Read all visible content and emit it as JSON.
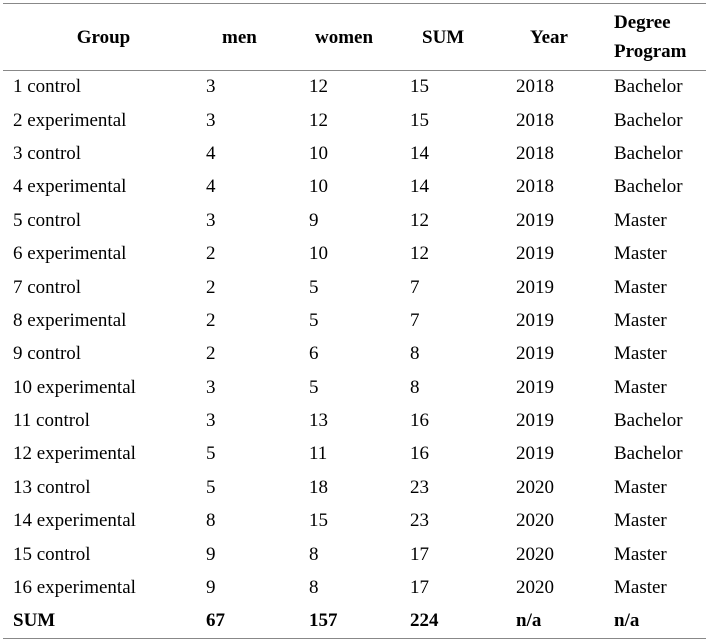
{
  "headers": {
    "group": "Group",
    "men": "men",
    "women": "women",
    "sum": "SUM",
    "year": "Year",
    "program_line1": "Degree",
    "program_line2": "Program"
  },
  "rows": [
    [
      "1 control",
      "3",
      "12",
      "15",
      "2018",
      "Bachelor"
    ],
    [
      "2 experimental",
      "3",
      "12",
      "15",
      "2018",
      "Bachelor"
    ],
    [
      "3 control",
      "4",
      "10",
      "14",
      "2018",
      "Bachelor"
    ],
    [
      "4 experimental",
      "4",
      "10",
      "14",
      "2018",
      "Bachelor"
    ],
    [
      "5 control",
      "3",
      "9",
      "12",
      "2019",
      "Master"
    ],
    [
      "6 experimental",
      "2",
      "10",
      "12",
      "2019",
      "Master"
    ],
    [
      "7 control",
      "2",
      "5",
      "7",
      "2019",
      "Master"
    ],
    [
      "8 experimental",
      "2",
      "5",
      "7",
      "2019",
      "Master"
    ],
    [
      "9 control",
      "2",
      "6",
      "8",
      "2019",
      "Master"
    ],
    [
      "10 experimental",
      "3",
      "5",
      "8",
      "2019",
      "Master"
    ],
    [
      "11 control",
      "3",
      "13",
      "16",
      "2019",
      "Bachelor"
    ],
    [
      "12 experimental",
      "5",
      "11",
      "16",
      "2019",
      "Bachelor"
    ],
    [
      "13 control",
      "5",
      "18",
      "23",
      "2020",
      "Master"
    ],
    [
      "14 experimental",
      "8",
      "15",
      "23",
      "2020",
      "Master"
    ],
    [
      "15 control",
      "9",
      "8",
      "17",
      "2020",
      "Master"
    ],
    [
      "16 experimental",
      "9",
      "8",
      "17",
      "2020",
      "Master"
    ]
  ],
  "sum_row": [
    "SUM",
    "67",
    "157",
    "224",
    "n/a",
    "n/a"
  ]
}
